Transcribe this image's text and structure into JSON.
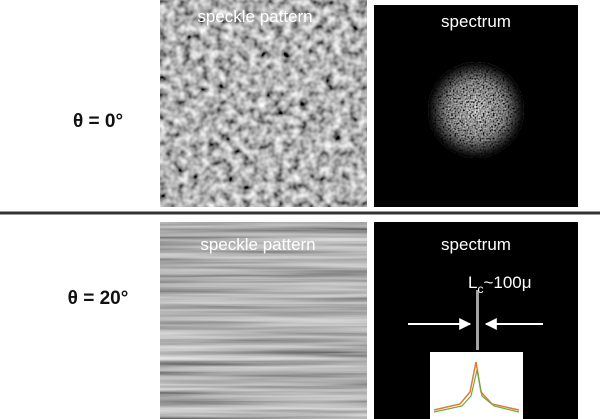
{
  "rows": [
    {
      "label": "θ = 0°",
      "panels": [
        "speckle pattern",
        "spectrum"
      ]
    },
    {
      "label": "θ = 20°",
      "panels": [
        "speckle pattern",
        "spectrum"
      ],
      "annotation": {
        "main": "L",
        "sub": "c",
        "rest": "~100μ"
      }
    }
  ]
}
